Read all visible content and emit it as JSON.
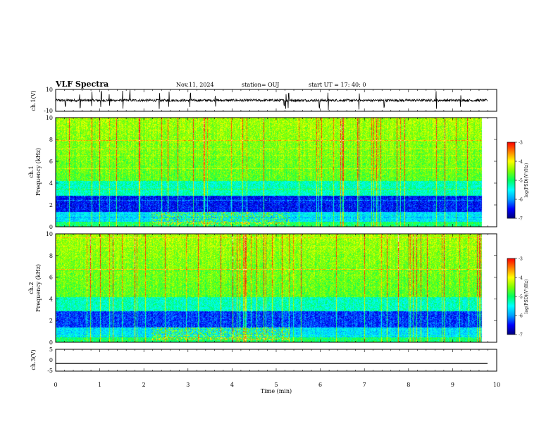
{
  "header": {
    "title": "VLF Spectra",
    "date": "Nov.11, 2024",
    "station": "station= OUJ",
    "start": "start  UT  =   17: 40: 0"
  },
  "chart_data": [
    {
      "type": "line",
      "panel": "ch1-waveform",
      "ylabel": "ch.1(V)",
      "ylim": [
        -10,
        10
      ],
      "yticks": [
        "10",
        "-10"
      ],
      "xlim": [
        0,
        10
      ],
      "baseline": 0,
      "spike_times_min": [
        0.22,
        0.55,
        0.82,
        1.03,
        1.22,
        1.52,
        1.68,
        2.35,
        2.57,
        3.05,
        3.62,
        5.18,
        5.22,
        5.28,
        5.98,
        6.18,
        6.88,
        7.45,
        8.63,
        9.18
      ]
    },
    {
      "type": "heatmap",
      "panel": "ch1-spectrogram",
      "ylabel_top": "ch.1",
      "ylabel": "Frequency (kHz)",
      "ylim": [
        0,
        10
      ],
      "yticks": [
        "0",
        "2",
        "4",
        "6",
        "8",
        "10"
      ],
      "xlim": [
        0,
        10
      ],
      "colorbar": {
        "label": "log(PSD)(V²/Hz)",
        "range": [
          -7,
          -3
        ],
        "ticks": [
          "-3",
          "-4",
          "-5",
          "-6",
          "-7"
        ]
      }
    },
    {
      "type": "heatmap",
      "panel": "ch2-spectrogram",
      "ylabel_top": "ch.2",
      "ylabel": "Frequency (kHz)",
      "ylim": [
        0,
        10
      ],
      "yticks": [
        "0",
        "2",
        "4",
        "6",
        "8",
        "10"
      ],
      "xlim": [
        0,
        10
      ],
      "colorbar": {
        "label": "log(PSD)(V²/Hz)",
        "range": [
          -7,
          -3
        ],
        "ticks": [
          "-3",
          "-4",
          "-5",
          "-6",
          "-7"
        ]
      }
    },
    {
      "type": "line",
      "panel": "ch3-waveform",
      "ylabel": "ch.3(V)",
      "ylim": [
        -5,
        5
      ],
      "yticks": [
        "5",
        "0",
        "-5"
      ],
      "xlim": [
        0,
        10
      ],
      "value": -1.5
    }
  ],
  "xaxis": {
    "label": "Time (min)",
    "ticks": [
      "0",
      "1",
      "2",
      "3",
      "4",
      "5",
      "6",
      "7",
      "8",
      "9",
      "10"
    ]
  },
  "colormap": [
    "#00007a",
    "#0000ff",
    "#00a0ff",
    "#00ffff",
    "#00ff60",
    "#80ff00",
    "#ffff00",
    "#ff8000",
    "#ff0000",
    "#ffffff"
  ]
}
